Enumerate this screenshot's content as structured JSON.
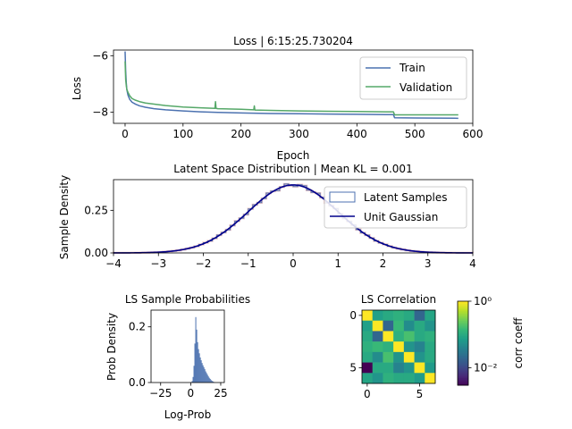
{
  "chart_data": [
    {
      "type": "line",
      "title": "Loss | 6:15:25.730204",
      "xlabel": "Epoch",
      "ylabel": "Loss",
      "xlim": [
        -20,
        600
      ],
      "ylim": [
        -8.4,
        -5.8
      ],
      "xticks": [
        0,
        100,
        200,
        300,
        400,
        500,
        600
      ],
      "yticks": [
        -6,
        -8
      ],
      "ytick_labels": [
        "−6",
        "−8"
      ],
      "legend_position": "top-right",
      "series": [
        {
          "name": "Train",
          "color": "#4c72b0",
          "x": [
            0,
            1,
            2,
            3,
            5,
            8,
            12,
            18,
            25,
            35,
            50,
            70,
            100,
            130,
            160,
            200,
            250,
            300,
            350,
            400,
            450,
            463,
            465,
            500,
            575
          ],
          "y": [
            -5.85,
            -6.55,
            -6.95,
            -7.2,
            -7.4,
            -7.55,
            -7.65,
            -7.72,
            -7.78,
            -7.83,
            -7.88,
            -7.92,
            -7.96,
            -7.99,
            -8.01,
            -8.03,
            -8.05,
            -8.06,
            -8.07,
            -8.08,
            -8.09,
            -8.09,
            -8.2,
            -8.21,
            -8.22
          ]
        },
        {
          "name": "Validation",
          "color": "#55a868",
          "x": [
            0,
            1,
            2,
            3,
            5,
            8,
            12,
            18,
            25,
            35,
            50,
            70,
            100,
            130,
            155,
            156,
            157,
            160,
            200,
            222,
            223,
            224,
            250,
            300,
            350,
            400,
            450,
            463,
            465,
            500,
            575
          ],
          "y": [
            -6.2,
            -6.85,
            -7.05,
            -7.2,
            -7.3,
            -7.42,
            -7.52,
            -7.58,
            -7.63,
            -7.68,
            -7.72,
            -7.77,
            -7.82,
            -7.85,
            -7.87,
            -7.63,
            -7.87,
            -7.88,
            -7.9,
            -7.92,
            -7.78,
            -7.93,
            -7.94,
            -7.96,
            -7.97,
            -7.98,
            -7.99,
            -7.99,
            -8.1,
            -8.1,
            -8.1
          ]
        }
      ]
    },
    {
      "type": "histogram",
      "title": "Latent Space Distribution | Mean KL = 0.001",
      "xlabel": "",
      "ylabel": "Sample Density",
      "xlim": [
        -4,
        4
      ],
      "ylim": [
        0,
        0.43
      ],
      "xticks": [
        -4,
        -3,
        -2,
        -1,
        0,
        1,
        2,
        3,
        4
      ],
      "xtick_labels": [
        "−4",
        "−3",
        "−2",
        "−1",
        "0",
        "1",
        "2",
        "3",
        "4"
      ],
      "yticks": [
        0.0,
        0.25
      ],
      "ytick_labels": [
        "0.00",
        "0.25"
      ],
      "legend_position": "top-right",
      "series": [
        {
          "name": "Latent Samples",
          "color": "#4c72b0",
          "kind": "histogram",
          "bin_edges_range": [
            -4,
            4
          ],
          "bins": 80
        },
        {
          "name": "Unit Gaussian",
          "color": "#00008b",
          "kind": "line",
          "formula": "normal_pdf"
        }
      ]
    },
    {
      "type": "histogram",
      "title": "LS Sample Probabilities",
      "xlabel": "Log-Prob",
      "ylabel": "Prob Density",
      "xlim": [
        -33,
        28
      ],
      "ylim": [
        0,
        0.26
      ],
      "xticks": [
        -25,
        0,
        25
      ],
      "xtick_labels": [
        "−25",
        "0",
        "25"
      ],
      "yticks": [
        0.0,
        0.2
      ],
      "ytick_labels": [
        "0.0",
        "0.2"
      ],
      "color": "#4c72b0",
      "bin_centers": [
        1.25,
        2.0,
        2.75,
        3.5,
        4.25,
        5.0,
        5.75,
        6.5,
        7.25,
        8.0,
        8.75,
        9.5,
        10.25,
        11.0,
        11.75,
        12.5,
        13.25,
        14.0,
        14.75,
        15.5,
        16.25,
        17.0,
        17.75,
        18.5,
        19.25,
        20.0
      ],
      "values": [
        0.005,
        0.02,
        0.06,
        0.14,
        0.235,
        0.19,
        0.145,
        0.12,
        0.105,
        0.09,
        0.08,
        0.07,
        0.062,
        0.055,
        0.048,
        0.04,
        0.034,
        0.028,
        0.022,
        0.017,
        0.013,
        0.009,
        0.006,
        0.004,
        0.002,
        0.001
      ]
    },
    {
      "type": "heatmap",
      "title": "LS Correlation",
      "xticks": [
        0,
        5
      ],
      "yticks": [
        0,
        5
      ],
      "colorbar_label": "corr coeff",
      "colorbar_ticks": [
        "10⁰",
        "10⁻²"
      ],
      "colorbar_tick_values": [
        1,
        0.01
      ],
      "colorscale": "viridis-log",
      "matrix": [
        [
          1.0,
          0.08,
          0.1,
          0.12,
          0.1,
          0.02,
          0.09
        ],
        [
          0.08,
          1.0,
          0.02,
          0.15,
          0.05,
          0.1,
          0.06
        ],
        [
          0.1,
          0.02,
          1.0,
          0.12,
          0.18,
          0.1,
          0.12
        ],
        [
          0.12,
          0.15,
          0.12,
          1.0,
          0.06,
          0.04,
          0.1
        ],
        [
          0.1,
          0.05,
          0.18,
          0.06,
          1.0,
          0.06,
          0.1
        ],
        [
          0.003,
          0.1,
          0.1,
          0.04,
          0.06,
          1.0,
          0.07
        ],
        [
          0.09,
          0.06,
          0.12,
          0.1,
          0.1,
          0.07,
          1.0
        ]
      ]
    }
  ]
}
